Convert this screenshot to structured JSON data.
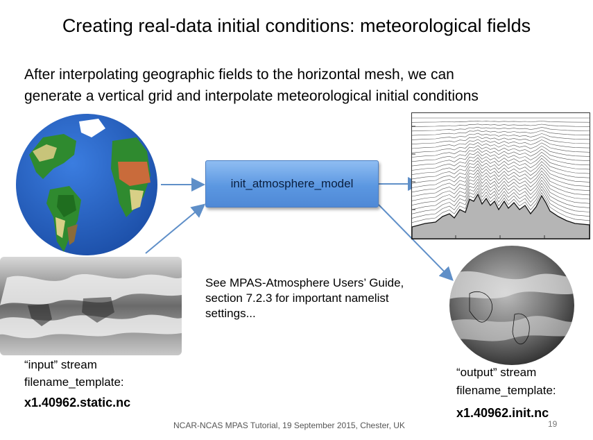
{
  "slide": {
    "title": "Creating real-data initial conditions: meteorological fields",
    "subtitle_line1": "After interpolating geographic fields to the horizontal mesh, we can",
    "subtitle_line2": "generate a vertical grid and interpolate meteorological initial conditions",
    "process_box": "init_atmosphere_model",
    "note": "See MPAS-Atmosphere Users’ Guide, section 7.2.3 for important namelist settings...",
    "input": {
      "line1": "“input” stream",
      "line2": "filename_template:",
      "file": "x1.40962.static.nc"
    },
    "output": {
      "line1": "“output” stream",
      "line2": "filename_template:",
      "file": "x1.40962.init.nc"
    },
    "footer": "NCAR-NCAS MPAS Tutorial, 19 September 2015, Chester, UK",
    "page_number": "19",
    "colors": {
      "arrow": "#5f8fc8",
      "box": "#5b97e1",
      "ocean": "#2a64c8",
      "land": "#2e8b2e",
      "desert": "#c8693a"
    }
  }
}
